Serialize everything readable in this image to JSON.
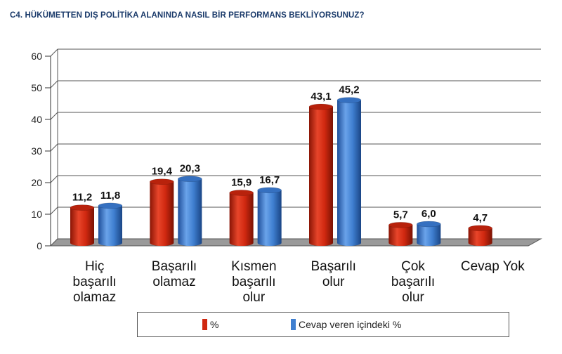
{
  "title": "C4. HÜKÜMETTEN DIŞ POLİTİKA ALANINDA NASIL BİR PERFORMANS BEKLİYORSUNUZ?",
  "colors": {
    "red": "#d02810",
    "blue": "#3f7fd0"
  },
  "chart_data": {
    "type": "bar",
    "categories": [
      [
        "Hiç",
        "başarılı",
        "olamaz"
      ],
      [
        "Başarılı",
        "olamaz"
      ],
      [
        "Kısmen",
        "başarılı",
        "olur"
      ],
      [
        "Başarılı",
        "olur"
      ],
      [
        "Çok",
        "başarılı",
        "olur"
      ],
      [
        "Cevap Yok"
      ]
    ],
    "series": [
      {
        "name": "%",
        "values": [
          11.2,
          19.4,
          15.9,
          43.1,
          5.7,
          4.7
        ],
        "labels": [
          "11,2",
          "19,4",
          "15,9",
          "43,1",
          "5,7",
          "4,7"
        ]
      },
      {
        "name": "Cevap veren içindeki %",
        "values": [
          11.8,
          20.3,
          16.7,
          45.2,
          6.0,
          null
        ],
        "labels": [
          "11,8",
          "20,3",
          "16,7",
          "45,2",
          "6,0",
          ""
        ]
      }
    ],
    "yticks": [
      "0",
      "10",
      "20",
      "30",
      "40",
      "50",
      "60"
    ],
    "ylim": [
      0,
      60
    ],
    "grid": true,
    "legend_position": "bottom"
  }
}
